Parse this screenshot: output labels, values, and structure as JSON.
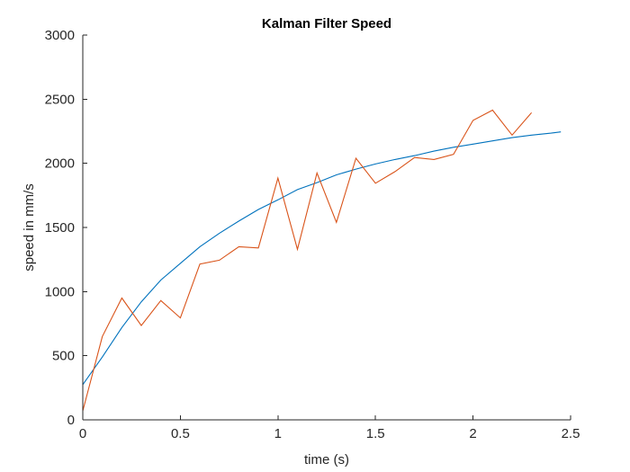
{
  "chart_data": {
    "type": "line",
    "title": "Kalman Filter Speed",
    "xlabel": "time (s)",
    "ylabel": "speed in mm/s",
    "xlim": [
      0,
      2.5
    ],
    "ylim": [
      0,
      3000
    ],
    "xticks": [
      0,
      0.5,
      1,
      1.5,
      2,
      2.5
    ],
    "xtick_labels": [
      "0",
      "0.5",
      "1",
      "1.5",
      "2",
      "2.5"
    ],
    "yticks": [
      0,
      500,
      1000,
      1500,
      2000,
      2500,
      3000
    ],
    "ytick_labels": [
      "0",
      "500",
      "1000",
      "1500",
      "2000",
      "2500",
      "3000"
    ],
    "grid": false,
    "series": [
      {
        "color": "#0072BD",
        "x": [
          0,
          0.1,
          0.2,
          0.3,
          0.4,
          0.5,
          0.6,
          0.7,
          0.8,
          0.9,
          1.0,
          1.1,
          1.2,
          1.3,
          1.4,
          1.5,
          1.6,
          1.7,
          1.8,
          1.9,
          2.0,
          2.1,
          2.2,
          2.3,
          2.4,
          2.45
        ],
        "y": [
          275,
          490,
          720,
          920,
          1090,
          1220,
          1350,
          1455,
          1550,
          1640,
          1715,
          1795,
          1850,
          1910,
          1955,
          1995,
          2030,
          2060,
          2095,
          2125,
          2150,
          2175,
          2200,
          2220,
          2235,
          2245
        ]
      },
      {
        "color": "#D95319",
        "x": [
          0,
          0.1,
          0.2,
          0.3,
          0.4,
          0.5,
          0.6,
          0.7,
          0.8,
          0.9,
          1.0,
          1.1,
          1.2,
          1.3,
          1.4,
          1.5,
          1.6,
          1.7,
          1.8,
          1.9,
          2.0,
          2.1,
          2.2,
          2.3
        ],
        "y": [
          70,
          650,
          950,
          735,
          930,
          795,
          1215,
          1245,
          1350,
          1340,
          1885,
          1330,
          1925,
          1540,
          2040,
          1845,
          1935,
          2045,
          2030,
          2070,
          2335,
          2415,
          2220,
          2395
        ]
      }
    ]
  }
}
